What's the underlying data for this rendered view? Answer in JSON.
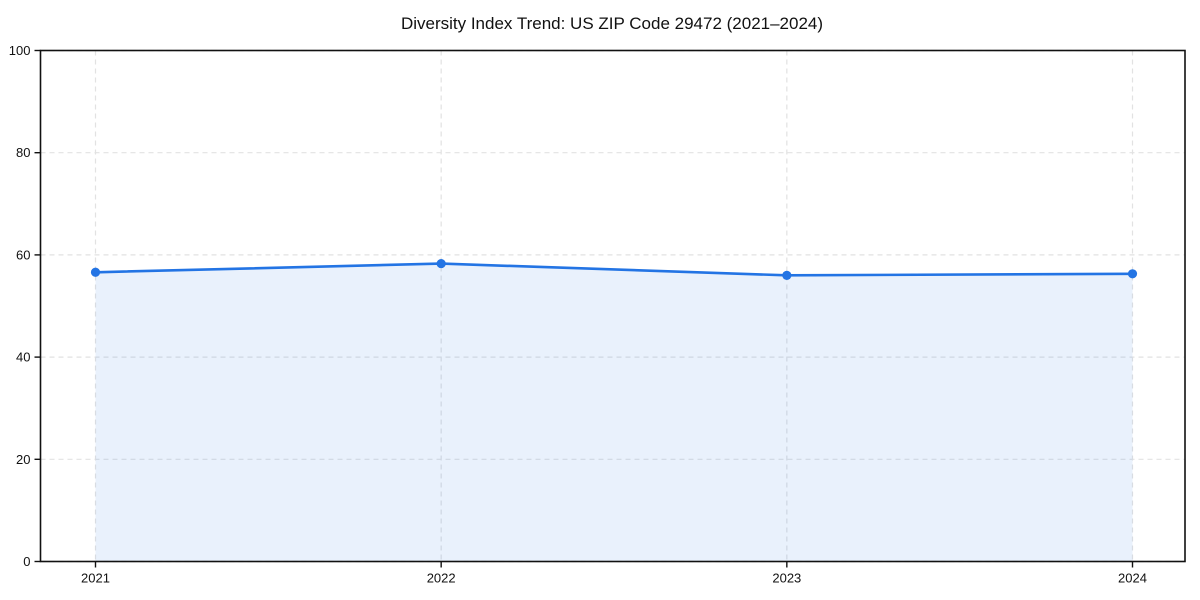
{
  "chart_data": {
    "type": "area",
    "title": "Diversity Index Trend: US ZIP Code 29472 (2021–2024)",
    "categories": [
      "2021",
      "2022",
      "2023",
      "2024"
    ],
    "series": [
      {
        "name": "Diversity Index",
        "values": [
          56.6,
          58.3,
          56.0,
          56.3
        ]
      }
    ],
    "xlabel": "",
    "ylabel": "",
    "ylim": [
      0,
      100
    ],
    "yticks": [
      0,
      20,
      40,
      60,
      80,
      100
    ],
    "grid": "dashed horizontal and vertical gridlines",
    "legend_position": "none",
    "colors": {
      "line": "#2374e4",
      "marker": "#2374e4",
      "area_fill": "#2374e4",
      "area_opacity": 0.1,
      "grid": "#e2e2e2",
      "axis": "#111111",
      "text": "#111111",
      "background": "#ffffff"
    }
  }
}
